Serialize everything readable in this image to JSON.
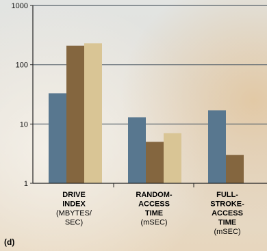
{
  "panel_label": "(d)",
  "colors": {
    "series_1": "#58778f",
    "series_2": "#84663f",
    "series_3": "#d9c595",
    "gridline": "#55606a",
    "axis": "#222222",
    "bg_top": "#e2e4e2",
    "bg_bottom": "#e7d6bd"
  },
  "chart_data": {
    "type": "bar",
    "yscale": "log",
    "ylim": [
      1,
      1000
    ],
    "yticks": [
      "1",
      "10",
      "100",
      "1000"
    ],
    "grid": true,
    "legend": "none",
    "categories": [
      {
        "title": [
          "DRIVE",
          "INDEX"
        ],
        "unit": [
          "(MBYTES/",
          "SEC)"
        ]
      },
      {
        "title": [
          "RANDOM-",
          "ACCESS",
          "TIME"
        ],
        "unit": [
          "(mSEC)"
        ]
      },
      {
        "title": [
          "FULL-",
          "STROKE-",
          "ACCESS",
          "TIME"
        ],
        "unit": [
          "(mSEC)"
        ]
      }
    ],
    "series": [
      {
        "values": [
          33,
          13,
          17
        ]
      },
      {
        "values": [
          210,
          5,
          3
        ]
      },
      {
        "values": [
          230,
          7,
          null
        ]
      }
    ]
  }
}
